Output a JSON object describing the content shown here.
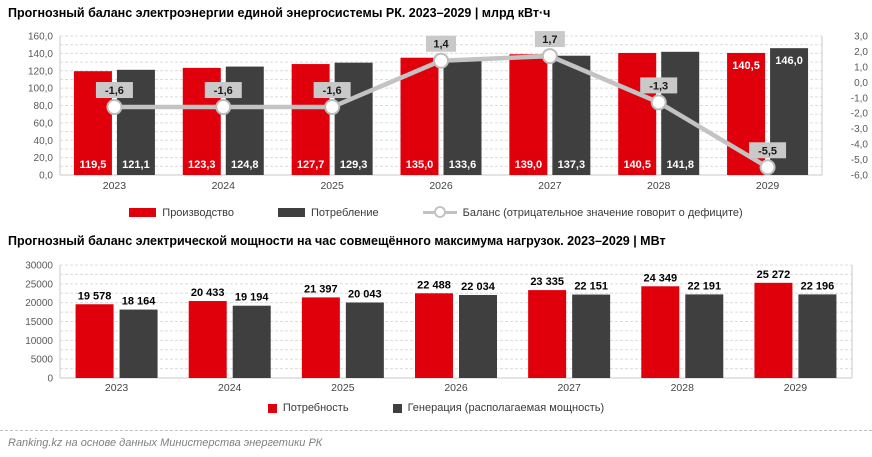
{
  "footer": {
    "text": "Ranking.kz на основе данных Министерства энергетики РК"
  },
  "colors": {
    "bar_red": "#e0000b",
    "bar_dark": "#3f3f3f",
    "balance_line": "#c3c3c3",
    "balance_marker_fill": "#ffffff",
    "balance_marker_stroke": "#bdbdbd",
    "balance_label_bg": "#c9c9c9",
    "grid": "#dcdcdc",
    "plot_border": "#c9c9c9",
    "axis_text": "#595959",
    "title_text": "#000000",
    "footer_text": "#7f7f7f",
    "value_label_light": "#ffffff",
    "value_label_dark": "#000000"
  },
  "chart_data": [
    {
      "type": "bar+line",
      "title": "Прогнозный баланс электроэнергии единой энергосистемы РК. 2023–2029 | млрд кВт·ч",
      "categories": [
        "2023",
        "2024",
        "2025",
        "2026",
        "2027",
        "2028",
        "2029"
      ],
      "series": [
        {
          "id": "production",
          "name": "Производство",
          "type": "bar",
          "color": "#e0000b",
          "values": [
            119.5,
            123.3,
            127.7,
            135.0,
            139.0,
            140.5,
            140.5
          ],
          "labels": [
            "119,5",
            "123,3",
            "127,7",
            "135,0",
            "139,0",
            "140,5",
            "140,5"
          ]
        },
        {
          "id": "consumption",
          "name": "Потребление",
          "type": "bar",
          "color": "#3f3f3f",
          "values": [
            121.1,
            124.8,
            129.3,
            133.6,
            137.3,
            141.8,
            146.0
          ],
          "labels": [
            "121,1",
            "124,8",
            "129,3",
            "133,6",
            "137,3",
            "141,8",
            "146,0"
          ]
        },
        {
          "id": "balance",
          "name": "Баланс (отрицательное значение говорит о дефиците)",
          "type": "line",
          "axis": "right",
          "values": [
            -1.6,
            -1.6,
            -1.6,
            1.4,
            1.7,
            -1.3,
            -5.5
          ],
          "labels": [
            "-1,6",
            "-1,6",
            "-1,6",
            "1,4",
            "1,7",
            "-1,3",
            "-5,5"
          ]
        }
      ],
      "left_axis": {
        "min": 0,
        "max": 160,
        "step": 20,
        "labels": [
          "0,0",
          "20,0",
          "40,0",
          "60,0",
          "80,0",
          "100,0",
          "120,0",
          "140,0",
          "160,0"
        ]
      },
      "right_axis": {
        "min": -6,
        "max": 3,
        "step": 1,
        "labels": [
          "-6,0",
          "-5,0",
          "-4,0",
          "-3,0",
          "-2,0",
          "-1,0",
          "0,0",
          "1,0",
          "2,0",
          "3,0"
        ]
      },
      "value_label_placement": {
        "default": "inside-base",
        "overrides": {
          "6": "inside-top"
        }
      },
      "grid": "dashed-minor",
      "legend_position": "bottom"
    },
    {
      "type": "bar",
      "title": "Прогнозный баланс электрической мощности на час совмещённого максимума нагрузок. 2023–2029 | МВт",
      "categories": [
        "2023",
        "2024",
        "2025",
        "2026",
        "2027",
        "2028",
        "2029"
      ],
      "series": [
        {
          "id": "demand",
          "name": "Потребность",
          "type": "bar",
          "color": "#e0000b",
          "values": [
            19578,
            20433,
            21397,
            22488,
            23335,
            24349,
            25272
          ],
          "labels": [
            "19 578",
            "20 433",
            "21 397",
            "22 488",
            "23 335",
            "24 349",
            "25 272"
          ]
        },
        {
          "id": "generation",
          "name": "Генерация (располагаемая мощность)",
          "type": "bar",
          "color": "#3f3f3f",
          "values": [
            18164,
            19194,
            20043,
            22034,
            22151,
            22191,
            22196
          ],
          "labels": [
            "18 164",
            "19 194",
            "20 043",
            "22 034",
            "22 151",
            "22 191",
            "22 196"
          ]
        }
      ],
      "left_axis": {
        "min": 0,
        "max": 30000,
        "step": 5000,
        "labels": [
          "0",
          "5000",
          "10000",
          "15000",
          "20000",
          "25000",
          "30000"
        ]
      },
      "value_label_placement": {
        "default": "outside-top"
      },
      "grid": "dashed-minor",
      "legend_position": "bottom"
    }
  ]
}
